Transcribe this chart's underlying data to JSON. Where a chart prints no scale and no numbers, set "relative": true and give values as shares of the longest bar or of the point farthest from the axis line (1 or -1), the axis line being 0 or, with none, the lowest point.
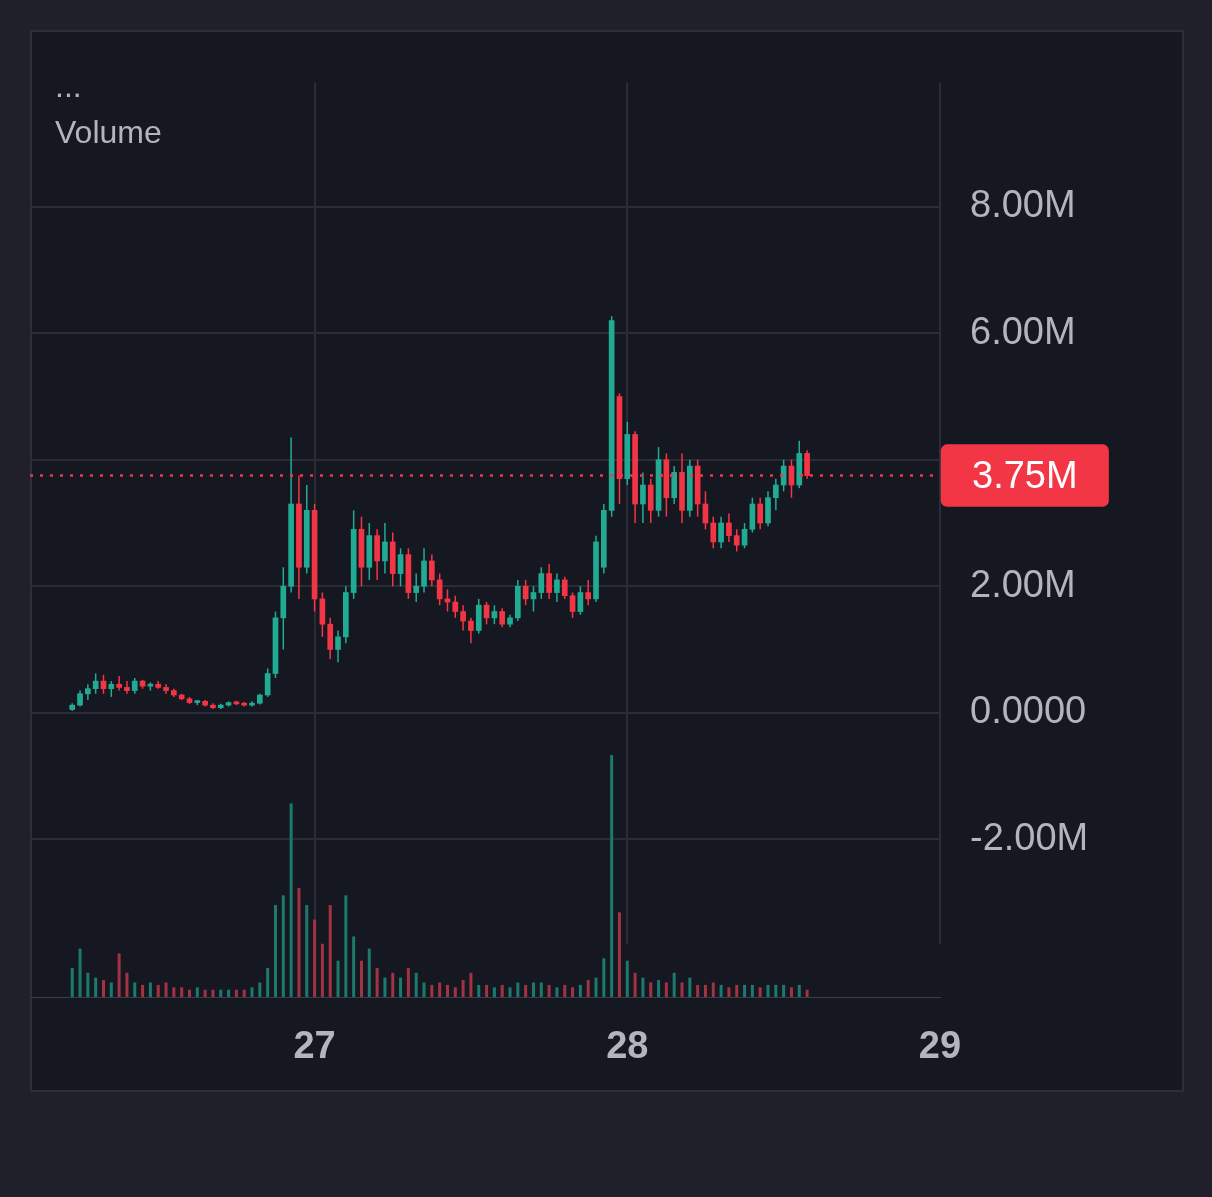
{
  "chart_data": [
    {
      "type": "candlestick",
      "title": "...",
      "tick_labels": "y",
      "grid": true,
      "legend": false,
      "x": [
        26.225,
        26.25,
        26.275,
        26.3,
        26.325,
        26.35,
        26.375,
        26.4,
        26.425,
        26.45,
        26.475,
        26.5,
        26.525,
        26.55,
        26.575,
        26.6,
        26.625,
        26.65,
        26.675,
        26.7,
        26.725,
        26.75,
        26.775,
        26.8,
        26.825,
        26.85,
        26.875,
        26.9,
        26.925,
        26.95,
        26.975,
        27,
        27.025,
        27.05,
        27.075,
        27.1,
        27.125,
        27.15,
        27.175,
        27.2,
        27.225,
        27.25,
        27.275,
        27.3,
        27.325,
        27.35,
        27.375,
        27.4,
        27.425,
        27.45,
        27.475,
        27.5,
        27.525,
        27.55,
        27.575,
        27.6,
        27.625,
        27.65,
        27.675,
        27.7,
        27.725,
        27.75,
        27.775,
        27.8,
        27.825,
        27.85,
        27.875,
        27.9,
        27.925,
        27.95,
        27.975,
        28,
        28.025,
        28.05,
        28.075,
        28.1,
        28.125,
        28.15,
        28.175,
        28.2,
        28.225,
        28.25,
        28.275,
        28.3,
        28.325,
        28.35,
        28.375,
        28.4,
        28.425,
        28.45,
        28.475,
        28.5,
        28.525,
        28.55,
        28.575
      ],
      "ohlc": [
        [
          0.05,
          0.15,
          0.03,
          0.12
        ],
        [
          0.12,
          0.35,
          0.1,
          0.3
        ],
        [
          0.3,
          0.45,
          0.2,
          0.38
        ],
        [
          0.38,
          0.62,
          0.3,
          0.5
        ],
        [
          0.5,
          0.6,
          0.3,
          0.38
        ],
        [
          0.38,
          0.5,
          0.25,
          0.45
        ],
        [
          0.45,
          0.58,
          0.35,
          0.4
        ],
        [
          0.4,
          0.5,
          0.3,
          0.35
        ],
        [
          0.35,
          0.55,
          0.3,
          0.5
        ],
        [
          0.5,
          0.52,
          0.38,
          0.42
        ],
        [
          0.42,
          0.48,
          0.35,
          0.45
        ],
        [
          0.45,
          0.5,
          0.38,
          0.4
        ],
        [
          0.4,
          0.45,
          0.3,
          0.35
        ],
        [
          0.35,
          0.38,
          0.25,
          0.28
        ],
        [
          0.28,
          0.3,
          0.2,
          0.22
        ],
        [
          0.22,
          0.25,
          0.14,
          0.16
        ],
        [
          0.16,
          0.2,
          0.12,
          0.18
        ],
        [
          0.18,
          0.2,
          0.1,
          0.12
        ],
        [
          0.12,
          0.15,
          0.06,
          0.08
        ],
        [
          0.08,
          0.14,
          0.06,
          0.12
        ],
        [
          0.12,
          0.18,
          0.1,
          0.16
        ],
        [
          0.16,
          0.19,
          0.12,
          0.14
        ],
        [
          0.14,
          0.17,
          0.1,
          0.12
        ],
        [
          0.12,
          0.18,
          0.1,
          0.15
        ],
        [
          0.15,
          0.3,
          0.13,
          0.28
        ],
        [
          0.28,
          0.7,
          0.25,
          0.62
        ],
        [
          0.62,
          1.6,
          0.55,
          1.5
        ],
        [
          1.5,
          2.3,
          1.0,
          2.0
        ],
        [
          2.0,
          4.35,
          1.9,
          3.3
        ],
        [
          3.3,
          3.75,
          1.8,
          2.3
        ],
        [
          2.3,
          3.6,
          2.2,
          3.2
        ],
        [
          3.2,
          3.3,
          1.6,
          1.8
        ],
        [
          1.8,
          1.9,
          1.2,
          1.4
        ],
        [
          1.4,
          1.5,
          0.85,
          1.0
        ],
        [
          1.0,
          1.3,
          0.8,
          1.2
        ],
        [
          1.2,
          2.0,
          1.1,
          1.9
        ],
        [
          1.9,
          3.2,
          1.8,
          2.9
        ],
        [
          2.9,
          3.1,
          2.0,
          2.3
        ],
        [
          2.3,
          3.0,
          2.1,
          2.8
        ],
        [
          2.8,
          2.9,
          2.1,
          2.4
        ],
        [
          2.4,
          3.0,
          2.2,
          2.7
        ],
        [
          2.7,
          2.85,
          2.0,
          2.2
        ],
        [
          2.2,
          2.6,
          2.0,
          2.5
        ],
        [
          2.5,
          2.6,
          1.8,
          1.9
        ],
        [
          1.9,
          2.2,
          1.75,
          2.0
        ],
        [
          2.0,
          2.6,
          1.9,
          2.4
        ],
        [
          2.4,
          2.5,
          2.0,
          2.1
        ],
        [
          2.1,
          2.2,
          1.7,
          1.8
        ],
        [
          1.8,
          1.95,
          1.6,
          1.75
        ],
        [
          1.75,
          1.85,
          1.5,
          1.6
        ],
        [
          1.6,
          1.7,
          1.3,
          1.45
        ],
        [
          1.45,
          1.5,
          1.1,
          1.3
        ],
        [
          1.3,
          1.8,
          1.25,
          1.7
        ],
        [
          1.7,
          1.75,
          1.4,
          1.5
        ],
        [
          1.5,
          1.7,
          1.4,
          1.6
        ],
        [
          1.6,
          1.65,
          1.35,
          1.4
        ],
        [
          1.4,
          1.55,
          1.35,
          1.5
        ],
        [
          1.5,
          2.1,
          1.45,
          2.0
        ],
        [
          2.0,
          2.1,
          1.7,
          1.8
        ],
        [
          1.8,
          2.0,
          1.6,
          1.9
        ],
        [
          1.9,
          2.3,
          1.8,
          2.2
        ],
        [
          2.2,
          2.35,
          1.8,
          1.9
        ],
        [
          1.9,
          2.2,
          1.75,
          2.1
        ],
        [
          2.1,
          2.15,
          1.8,
          1.85
        ],
        [
          1.85,
          1.9,
          1.5,
          1.6
        ],
        [
          1.6,
          2.0,
          1.55,
          1.9
        ],
        [
          1.9,
          2.1,
          1.7,
          1.8
        ],
        [
          1.8,
          2.8,
          1.75,
          2.7
        ],
        [
          2.3,
          3.3,
          2.2,
          3.2
        ],
        [
          3.2,
          6.27,
          3.1,
          6.2
        ],
        [
          5.0,
          5.05,
          3.3,
          3.7
        ],
        [
          3.7,
          4.6,
          3.6,
          4.4
        ],
        [
          4.4,
          4.45,
          3.0,
          3.3
        ],
        [
          3.3,
          3.8,
          3.0,
          3.6
        ],
        [
          3.6,
          3.7,
          3.0,
          3.2
        ],
        [
          3.2,
          4.2,
          3.1,
          4.0
        ],
        [
          4.0,
          4.1,
          3.1,
          3.4
        ],
        [
          3.4,
          3.9,
          3.3,
          3.8
        ],
        [
          3.8,
          4.1,
          3.0,
          3.2
        ],
        [
          3.2,
          4.0,
          3.1,
          3.9
        ],
        [
          3.9,
          4.0,
          3.1,
          3.3
        ],
        [
          3.3,
          3.5,
          2.9,
          3.0
        ],
        [
          3.0,
          3.1,
          2.6,
          2.7
        ],
        [
          2.7,
          3.1,
          2.6,
          3.0
        ],
        [
          3.0,
          3.15,
          2.7,
          2.8
        ],
        [
          2.8,
          2.9,
          2.55,
          2.65
        ],
        [
          2.65,
          3.0,
          2.6,
          2.9
        ],
        [
          2.9,
          3.4,
          2.85,
          3.3
        ],
        [
          3.3,
          3.4,
          2.9,
          3.0
        ],
        [
          3.0,
          3.5,
          2.95,
          3.4
        ],
        [
          3.4,
          3.7,
          3.2,
          3.6
        ],
        [
          3.6,
          4.0,
          3.5,
          3.9
        ],
        [
          3.9,
          4.0,
          3.4,
          3.6
        ],
        [
          3.6,
          4.3,
          3.55,
          4.1
        ],
        [
          4.1,
          4.15,
          3.7,
          3.75
        ]
      ],
      "colors": [
        "#22ab94",
        "#22ab94",
        "#22ab94",
        "#22ab94",
        "#f23645",
        "#22ab94",
        "#f23645",
        "#f23645",
        "#22ab94",
        "#f23645",
        "#22ab94",
        "#f23645",
        "#f23645",
        "#f23645",
        "#f23645",
        "#f23645",
        "#22ab94",
        "#f23645",
        "#f23645",
        "#22ab94",
        "#22ab94",
        "#f23645",
        "#f23645",
        "#22ab94",
        "#22ab94",
        "#22ab94",
        "#22ab94",
        "#22ab94",
        "#22ab94",
        "#f23645",
        "#22ab94",
        "#f23645",
        "#f23645",
        "#f23645",
        "#22ab94",
        "#22ab94",
        "#22ab94",
        "#f23645",
        "#22ab94",
        "#f23645",
        "#22ab94",
        "#f23645",
        "#22ab94",
        "#f23645",
        "#22ab94",
        "#22ab94",
        "#f23645",
        "#f23645",
        "#f23645",
        "#f23645",
        "#f23645",
        "#f23645",
        "#22ab94",
        "#f23645",
        "#22ab94",
        "#f23645",
        "#22ab94",
        "#22ab94",
        "#f23645",
        "#22ab94",
        "#22ab94",
        "#f23645",
        "#22ab94",
        "#f23645",
        "#f23645",
        "#22ab94",
        "#f23645",
        "#22ab94",
        "#22ab94",
        "#22ab94",
        "#f23645",
        "#22ab94",
        "#f23645",
        "#22ab94",
        "#f23645",
        "#22ab94",
        "#f23645",
        "#22ab94",
        "#f23645",
        "#22ab94",
        "#f23645",
        "#f23645",
        "#f23645",
        "#22ab94",
        "#f23645",
        "#f23645",
        "#22ab94",
        "#22ab94",
        "#f23645",
        "#22ab94",
        "#22ab94",
        "#22ab94",
        "#f23645",
        "#22ab94",
        "#f23645"
      ],
      "xlim": [
        26.09,
        29
      ],
      "xticks": [
        27,
        28,
        29
      ],
      "ylim": [
        -3.66,
        9.96
      ],
      "yticks": [
        {
          "value": -2,
          "label": "-2.00M"
        },
        {
          "value": 0,
          "label": "0.0000"
        },
        {
          "value": 2,
          "label": "2.00M"
        },
        {
          "value": 4,
          "label": null
        },
        {
          "value": 6,
          "label": "6.00M"
        },
        {
          "value": 8,
          "label": "8.00M"
        }
      ],
      "ref_lines": [
        {
          "axis": "y",
          "value": 3.75,
          "label": "3.75M",
          "color": "#f23645",
          "line_style": "dotted"
        }
      ]
    },
    {
      "type": "bar",
      "title": "Volume",
      "relative": true,
      "tick_labels": "x",
      "legend": false,
      "x": [
        26.225,
        26.25,
        26.275,
        26.3,
        26.325,
        26.35,
        26.375,
        26.4,
        26.425,
        26.45,
        26.475,
        26.5,
        26.525,
        26.55,
        26.575,
        26.6,
        26.625,
        26.65,
        26.675,
        26.7,
        26.725,
        26.75,
        26.775,
        26.8,
        26.825,
        26.85,
        26.875,
        26.9,
        26.925,
        26.95,
        26.975,
        27,
        27.025,
        27.05,
        27.075,
        27.1,
        27.125,
        27.15,
        27.175,
        27.2,
        27.225,
        27.25,
        27.275,
        27.3,
        27.325,
        27.35,
        27.375,
        27.4,
        27.425,
        27.45,
        27.475,
        27.5,
        27.525,
        27.55,
        27.575,
        27.6,
        27.625,
        27.65,
        27.675,
        27.7,
        27.725,
        27.75,
        27.775,
        27.8,
        27.825,
        27.85,
        27.875,
        27.9,
        27.925,
        27.95,
        27.975,
        28,
        28.025,
        28.05,
        28.075,
        28.1,
        28.125,
        28.15,
        28.175,
        28.2,
        28.225,
        28.25,
        28.275,
        28.3,
        28.325,
        28.35,
        28.375,
        28.4,
        28.425,
        28.45,
        28.475,
        28.5,
        28.525,
        28.55,
        28.575
      ],
      "values": [
        0.12,
        0.2,
        0.1,
        0.08,
        0.07,
        0.06,
        0.18,
        0.1,
        0.06,
        0.05,
        0.06,
        0.05,
        0.06,
        0.04,
        0.04,
        0.03,
        0.04,
        0.03,
        0.03,
        0.03,
        0.03,
        0.03,
        0.03,
        0.04,
        0.06,
        0.12,
        0.38,
        0.42,
        0.8,
        0.45,
        0.38,
        0.32,
        0.22,
        0.38,
        0.15,
        0.42,
        0.25,
        0.15,
        0.2,
        0.12,
        0.08,
        0.1,
        0.08,
        0.12,
        0.1,
        0.06,
        0.05,
        0.06,
        0.05,
        0.04,
        0.07,
        0.1,
        0.05,
        0.05,
        0.04,
        0.05,
        0.04,
        0.06,
        0.05,
        0.06,
        0.06,
        0.05,
        0.04,
        0.05,
        0.04,
        0.05,
        0.07,
        0.08,
        0.16,
        1,
        0.35,
        0.15,
        0.1,
        0.08,
        0.06,
        0.07,
        0.06,
        0.1,
        0.06,
        0.08,
        0.05,
        0.05,
        0.06,
        0.05,
        0.04,
        0.05,
        0.05,
        0.05,
        0.04,
        0.05,
        0.05,
        0.05,
        0.04,
        0.05,
        0.03
      ],
      "colors": [
        "#1c7a6c",
        "#1c7a6c",
        "#1c7a6c",
        "#1c7a6c",
        "#a23343",
        "#1c7a6c",
        "#a23343",
        "#a23343",
        "#1c7a6c",
        "#a23343",
        "#1c7a6c",
        "#a23343",
        "#a23343",
        "#a23343",
        "#a23343",
        "#a23343",
        "#1c7a6c",
        "#a23343",
        "#a23343",
        "#1c7a6c",
        "#1c7a6c",
        "#a23343",
        "#a23343",
        "#1c7a6c",
        "#1c7a6c",
        "#1c7a6c",
        "#1c7a6c",
        "#1c7a6c",
        "#1c7a6c",
        "#a23343",
        "#1c7a6c",
        "#a23343",
        "#a23343",
        "#a23343",
        "#1c7a6c",
        "#1c7a6c",
        "#1c7a6c",
        "#a23343",
        "#1c7a6c",
        "#a23343",
        "#1c7a6c",
        "#a23343",
        "#1c7a6c",
        "#a23343",
        "#1c7a6c",
        "#1c7a6c",
        "#a23343",
        "#a23343",
        "#a23343",
        "#a23343",
        "#a23343",
        "#a23343",
        "#1c7a6c",
        "#a23343",
        "#1c7a6c",
        "#a23343",
        "#1c7a6c",
        "#1c7a6c",
        "#a23343",
        "#1c7a6c",
        "#1c7a6c",
        "#a23343",
        "#1c7a6c",
        "#a23343",
        "#a23343",
        "#1c7a6c",
        "#a23343",
        "#1c7a6c",
        "#1c7a6c",
        "#1c7a6c",
        "#a23343",
        "#1c7a6c",
        "#a23343",
        "#1c7a6c",
        "#a23343",
        "#1c7a6c",
        "#a23343",
        "#1c7a6c",
        "#a23343",
        "#1c7a6c",
        "#a23343",
        "#a23343",
        "#a23343",
        "#1c7a6c",
        "#a23343",
        "#a23343",
        "#1c7a6c",
        "#1c7a6c",
        "#a23343",
        "#1c7a6c",
        "#1c7a6c",
        "#1c7a6c",
        "#a23343",
        "#1c7a6c",
        "#a23343"
      ],
      "xlim": [
        26.09,
        29
      ],
      "xticks": [
        27,
        28,
        29
      ]
    }
  ]
}
